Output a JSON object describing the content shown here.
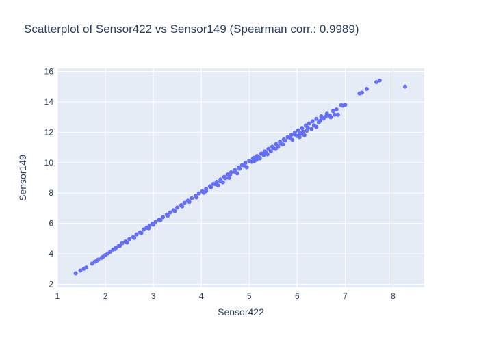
{
  "chart_data": {
    "type": "scatter",
    "title": "Scatterplot of Sensor422 vs Sensor149 (Spearman corr.: 0.9989)",
    "xlabel": "Sensor422",
    "ylabel": "Sensor149",
    "xlim": [
      1.0,
      8.65
    ],
    "ylim": [
      1.8,
      16.2
    ],
    "xticks": [
      1,
      2,
      3,
      4,
      5,
      6,
      7,
      8
    ],
    "yticks": [
      2,
      4,
      6,
      8,
      10,
      12,
      14,
      16
    ],
    "grid": true,
    "legend": "none",
    "colors": {
      "marker": "#636efa",
      "plot_bg": "#e5ecf6",
      "grid": "#ffffff",
      "text": "#2a3f5f"
    },
    "series": [
      {
        "points": [
          [
            1.38,
            2.72
          ],
          [
            1.48,
            2.9
          ],
          [
            1.55,
            3.02
          ],
          [
            1.6,
            3.1
          ],
          [
            1.72,
            3.35
          ],
          [
            1.78,
            3.48
          ],
          [
            1.85,
            3.62
          ],
          [
            1.92,
            3.74
          ],
          [
            2.0,
            3.92
          ],
          [
            2.05,
            4.02
          ],
          [
            2.1,
            4.13
          ],
          [
            2.16,
            4.28
          ],
          [
            2.22,
            4.4
          ],
          [
            2.28,
            4.53
          ],
          [
            2.35,
            4.7
          ],
          [
            2.42,
            4.82
          ],
          [
            2.5,
            4.98
          ],
          [
            2.58,
            5.1
          ],
          [
            2.65,
            5.28
          ],
          [
            2.72,
            5.42
          ],
          [
            2.8,
            5.6
          ],
          [
            2.86,
            5.72
          ],
          [
            2.92,
            5.85
          ],
          [
            2.98,
            5.98
          ],
          [
            3.05,
            6.12
          ],
          [
            3.12,
            6.25
          ],
          [
            3.2,
            6.42
          ],
          [
            3.28,
            6.58
          ],
          [
            3.35,
            6.73
          ],
          [
            3.42,
            6.88
          ],
          [
            3.5,
            7.05
          ],
          [
            3.58,
            7.2
          ],
          [
            3.65,
            7.36
          ],
          [
            3.72,
            7.5
          ],
          [
            3.8,
            7.66
          ],
          [
            3.88,
            7.83
          ],
          [
            3.95,
            7.98
          ],
          [
            4.02,
            8.12
          ],
          [
            4.1,
            8.28
          ],
          [
            4.18,
            8.45
          ],
          [
            4.25,
            8.6
          ],
          [
            4.32,
            8.73
          ],
          [
            4.4,
            8.9
          ],
          [
            4.48,
            9.06
          ],
          [
            4.55,
            9.22
          ],
          [
            4.62,
            9.36
          ],
          [
            4.7,
            9.52
          ],
          [
            4.78,
            9.68
          ],
          [
            4.85,
            9.84
          ],
          [
            4.92,
            9.98
          ],
          [
            5.0,
            10.12
          ],
          [
            5.08,
            10.28
          ],
          [
            5.16,
            10.44
          ],
          [
            5.25,
            10.6
          ],
          [
            5.32,
            10.74
          ],
          [
            5.4,
            10.9
          ],
          [
            5.48,
            11.05
          ],
          [
            5.56,
            11.22
          ],
          [
            5.64,
            11.38
          ],
          [
            5.72,
            11.52
          ],
          [
            5.8,
            11.68
          ],
          [
            5.88,
            11.84
          ],
          [
            5.95,
            11.98
          ],
          [
            6.02,
            12.12
          ],
          [
            6.1,
            12.28
          ],
          [
            6.18,
            12.44
          ],
          [
            6.25,
            12.58
          ],
          [
            6.32,
            12.72
          ],
          [
            6.4,
            12.88
          ],
          [
            6.5,
            13.05
          ],
          [
            6.62,
            13.22
          ],
          [
            6.75,
            13.4
          ],
          [
            6.82,
            13.5
          ],
          [
            6.92,
            13.78
          ],
          [
            7.0,
            13.8
          ],
          [
            7.3,
            14.55
          ],
          [
            7.35,
            14.6
          ],
          [
            7.45,
            14.85
          ],
          [
            7.65,
            15.3
          ],
          [
            7.72,
            15.4
          ],
          [
            8.25,
            15.0
          ],
          [
            4.05,
            8.02
          ],
          [
            4.1,
            8.14
          ],
          [
            4.2,
            8.38
          ],
          [
            4.3,
            8.58
          ],
          [
            4.4,
            8.78
          ],
          [
            4.5,
            8.98
          ],
          [
            4.6,
            9.2
          ],
          [
            4.7,
            9.4
          ],
          [
            4.8,
            9.6
          ],
          [
            4.9,
            9.82
          ],
          [
            5.05,
            10.05
          ],
          [
            5.2,
            10.36
          ],
          [
            5.35,
            10.66
          ],
          [
            5.5,
            10.96
          ],
          [
            5.65,
            11.26
          ],
          [
            5.75,
            11.45
          ],
          [
            5.85,
            11.65
          ],
          [
            5.95,
            11.85
          ],
          [
            6.05,
            11.95
          ],
          [
            6.12,
            12.05
          ],
          [
            6.22,
            12.3
          ],
          [
            6.35,
            12.45
          ],
          [
            6.45,
            12.65
          ],
          [
            6.55,
            12.9
          ],
          [
            6.68,
            13.1
          ],
          [
            6.78,
            13.15
          ],
          [
            6.85,
            13.15
          ],
          [
            6.0,
            11.75
          ],
          [
            6.1,
            11.9
          ],
          [
            6.2,
            12.1
          ],
          [
            5.3,
            10.5
          ],
          [
            5.45,
            10.75
          ],
          [
            5.6,
            11.05
          ],
          [
            5.1,
            10.1
          ],
          [
            4.95,
            9.7
          ],
          [
            4.75,
            9.3
          ],
          [
            4.58,
            9.0
          ],
          [
            4.45,
            8.7
          ],
          [
            4.35,
            8.5
          ],
          [
            3.0,
            5.92
          ],
          [
            3.15,
            6.22
          ],
          [
            3.3,
            6.52
          ],
          [
            3.45,
            6.82
          ],
          [
            3.6,
            7.12
          ],
          [
            3.75,
            7.42
          ],
          [
            3.9,
            7.72
          ],
          [
            2.45,
            4.75
          ],
          [
            2.6,
            5.05
          ],
          [
            2.75,
            5.38
          ],
          [
            2.9,
            5.68
          ],
          [
            2.2,
            4.32
          ],
          [
            2.3,
            4.52
          ],
          [
            1.95,
            3.8
          ],
          [
            1.82,
            3.55
          ],
          [
            6.4,
            12.35
          ],
          [
            6.3,
            12.22
          ],
          [
            6.15,
            11.8
          ],
          [
            6.05,
            11.68
          ],
          [
            5.9,
            11.5
          ],
          [
            5.7,
            11.2
          ],
          [
            5.55,
            10.9
          ],
          [
            5.38,
            10.55
          ],
          [
            5.22,
            10.28
          ],
          [
            5.1,
            10.32
          ],
          [
            5.15,
            10.18
          ],
          [
            6.48,
            12.75
          ],
          [
            6.52,
            12.95
          ],
          [
            6.6,
            13.05
          ],
          [
            6.7,
            12.98
          ],
          [
            6.95,
            13.75
          ]
        ]
      }
    ]
  }
}
